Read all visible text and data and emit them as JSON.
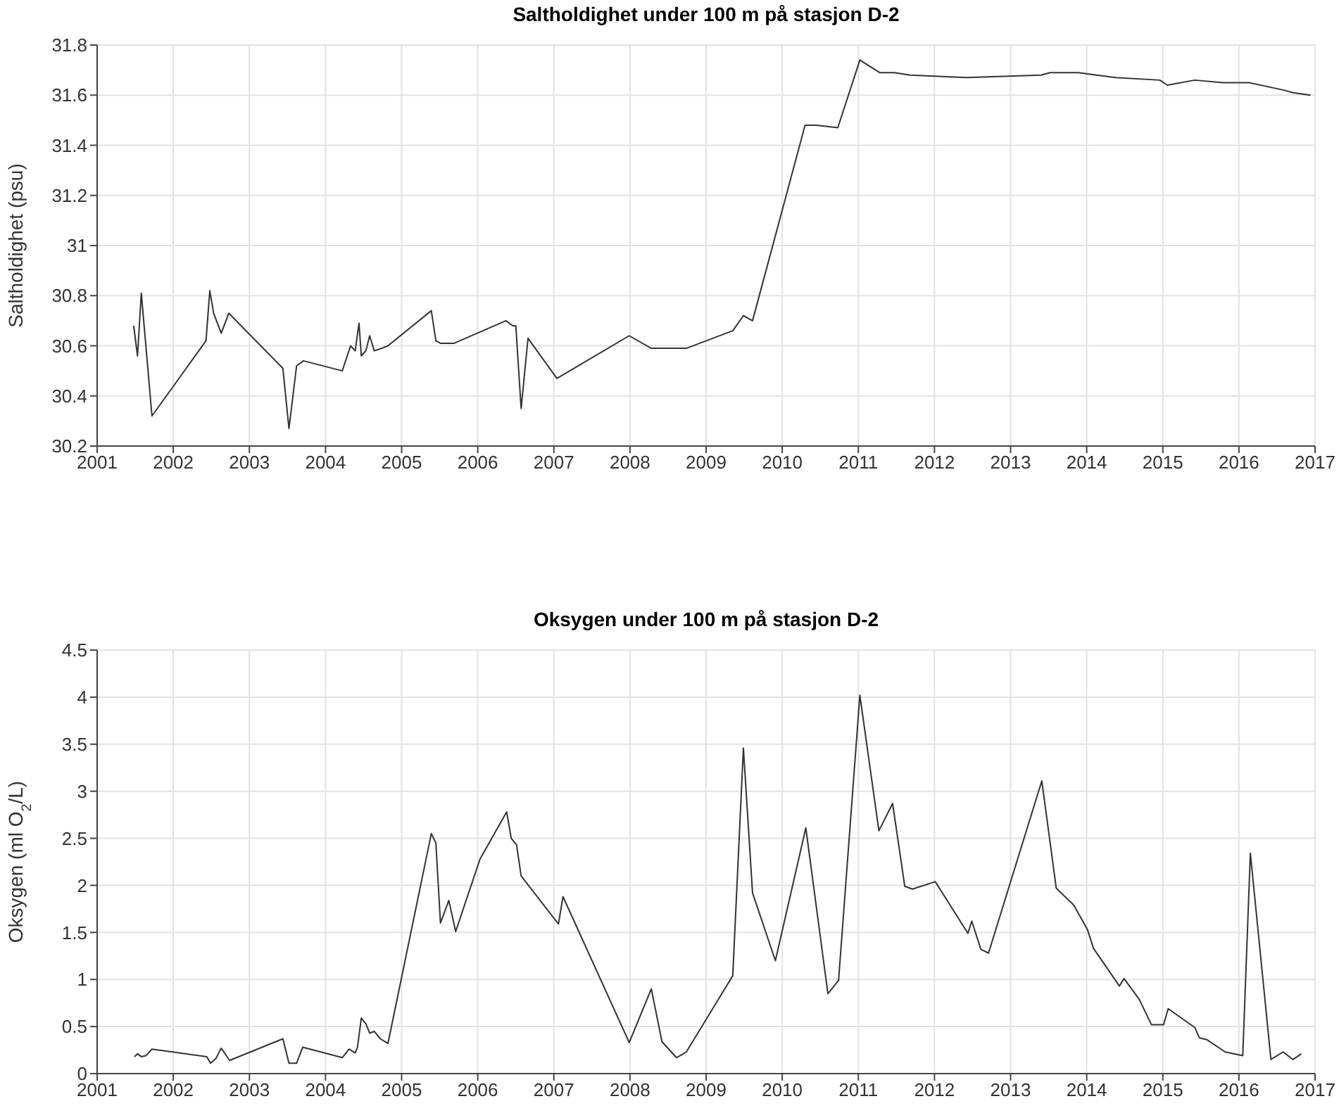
{
  "chart_data": [
    {
      "type": "line",
      "title": "Saltholdighet under 100 m på stasjon D-2",
      "ylabel": "Saltholdighet (psu)",
      "xlim": [
        2001,
        2017
      ],
      "xticks": [
        2001,
        2002,
        2003,
        2004,
        2005,
        2006,
        2007,
        2008,
        2009,
        2010,
        2011,
        2012,
        2013,
        2014,
        2015,
        2016,
        2017
      ],
      "ylim": [
        30.2,
        31.8
      ],
      "yticks": [
        30.2,
        30.4,
        30.6,
        30.8,
        31,
        31.2,
        31.4,
        31.6,
        31.8
      ],
      "grid": true,
      "series": [
        {
          "color": "#333333",
          "x": [
            2001.48,
            2001.53,
            2001.58,
            2001.72,
            2002.43,
            2002.48,
            2002.53,
            2002.63,
            2002.73,
            2003.44,
            2003.52,
            2003.62,
            2003.71,
            2004.22,
            2004.33,
            2004.39,
            2004.44,
            2004.47,
            2004.53,
            2004.58,
            2004.64,
            2004.74,
            2004.82,
            2005.39,
            2005.45,
            2005.51,
            2005.69,
            2006.37,
            2006.46,
            2006.5,
            2006.57,
            2006.66,
            2007.04,
            2007.99,
            2008.28,
            2008.74,
            2009.35,
            2009.49,
            2009.61,
            2010.3,
            2010.45,
            2010.73,
            2011.02,
            2011.28,
            2011.47,
            2011.68,
            2012.42,
            2013.4,
            2013.52,
            2013.89,
            2014.13,
            2014.38,
            2014.96,
            2015.06,
            2015.42,
            2015.79,
            2015.98,
            2016.13,
            2016.59,
            2016.71,
            2016.94
          ],
          "values": [
            30.68,
            30.56,
            30.81,
            30.32,
            30.62,
            30.82,
            30.73,
            30.65,
            30.73,
            30.51,
            30.27,
            30.52,
            30.54,
            30.5,
            30.6,
            30.58,
            30.69,
            30.56,
            30.58,
            30.64,
            30.58,
            30.59,
            30.6,
            30.74,
            30.62,
            30.61,
            30.61,
            30.7,
            30.68,
            30.68,
            30.35,
            30.63,
            30.47,
            30.64,
            30.59,
            30.59,
            30.66,
            30.72,
            30.7,
            31.48,
            31.48,
            31.47,
            31.74,
            31.69,
            31.69,
            31.68,
            31.67,
            31.68,
            31.69,
            31.69,
            31.68,
            31.67,
            31.66,
            31.64,
            31.66,
            31.65,
            31.65,
            31.65,
            31.62,
            31.61,
            31.6
          ]
        }
      ]
    },
    {
      "type": "line",
      "title": "Oksygen under 100 m på stasjon D-2",
      "ylabel": "Oksygen (ml O$_{2}$/L)",
      "xlim": [
        2001,
        2017
      ],
      "xticks": [
        2001,
        2002,
        2003,
        2004,
        2005,
        2006,
        2007,
        2008,
        2009,
        2010,
        2011,
        2012,
        2013,
        2014,
        2015,
        2016,
        2017
      ],
      "ylim": [
        0,
        4.5
      ],
      "yticks": [
        0,
        0.5,
        1,
        1.5,
        2,
        2.5,
        3,
        3.5,
        4,
        4.5
      ],
      "grid": true,
      "series": [
        {
          "color": "#333333",
          "x": [
            2001.49,
            2001.53,
            2001.58,
            2001.64,
            2001.72,
            2002.44,
            2002.49,
            2002.56,
            2002.63,
            2002.74,
            2003.44,
            2003.52,
            2003.62,
            2003.7,
            2004.22,
            2004.31,
            2004.39,
            2004.42,
            2004.47,
            2004.53,
            2004.58,
            2004.64,
            2004.72,
            2004.82,
            2005.39,
            2005.45,
            2005.51,
            2005.62,
            2005.71,
            2006.03,
            2006.38,
            2006.44,
            2006.51,
            2006.57,
            2007.06,
            2007.12,
            2007.99,
            2008.28,
            2008.42,
            2008.61,
            2008.7,
            2008.74,
            2009.35,
            2009.49,
            2009.61,
            2009.91,
            2010.31,
            2010.6,
            2010.74,
            2011.02,
            2011.27,
            2011.45,
            2011.61,
            2011.71,
            2012.01,
            2012.44,
            2012.49,
            2012.61,
            2012.71,
            2013.41,
            2013.6,
            2013.83,
            2014.01,
            2014.09,
            2014.43,
            2014.49,
            2014.69,
            2014.85,
            2015.01,
            2015.07,
            2015.42,
            2015.48,
            2015.58,
            2015.82,
            2016.05,
            2016.15,
            2016.42,
            2016.58,
            2016.71,
            2016.82
          ],
          "values": [
            0.18,
            0.21,
            0.18,
            0.19,
            0.26,
            0.18,
            0.11,
            0.16,
            0.27,
            0.14,
            0.37,
            0.11,
            0.11,
            0.28,
            0.17,
            0.26,
            0.22,
            0.28,
            0.59,
            0.53,
            0.43,
            0.45,
            0.37,
            0.32,
            2.55,
            2.45,
            1.6,
            1.84,
            1.51,
            2.28,
            2.78,
            2.5,
            2.43,
            2.1,
            1.59,
            1.88,
            0.33,
            0.9,
            0.34,
            0.17,
            0.21,
            0.23,
            1.04,
            3.46,
            1.92,
            1.2,
            2.61,
            0.85,
            0.99,
            4.02,
            2.58,
            2.87,
            1.99,
            1.96,
            2.04,
            1.49,
            1.62,
            1.32,
            1.28,
            3.11,
            1.97,
            1.79,
            1.53,
            1.33,
            0.93,
            1.01,
            0.79,
            0.52,
            0.52,
            0.69,
            0.49,
            0.38,
            0.36,
            0.23,
            0.19,
            2.34,
            0.15,
            0.23,
            0.15,
            0.21
          ]
        }
      ]
    }
  ]
}
